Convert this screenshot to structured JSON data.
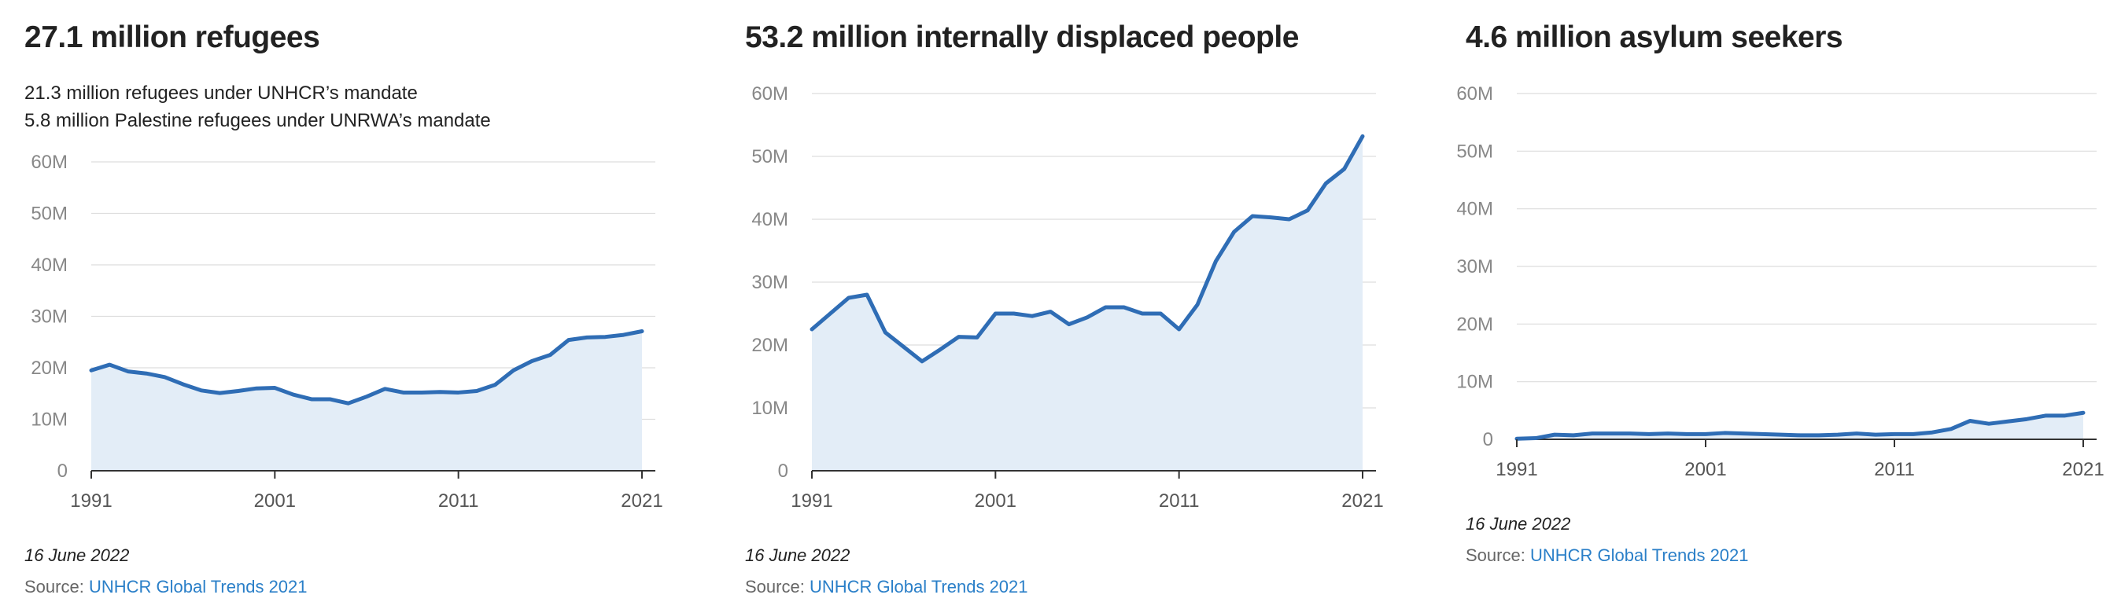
{
  "chart_data": [
    {
      "type": "area",
      "title": "27.1 million refugees",
      "subtitle": [
        "21.3 million refugees under UNHCR’s mandate",
        "5.8 million Palestine refugees under UNRWA’s mandate"
      ],
      "xlabel": "",
      "ylabel": "",
      "x": [
        1991,
        1992,
        1993,
        1994,
        1995,
        1996,
        1997,
        1998,
        1999,
        2000,
        2001,
        2002,
        2003,
        2004,
        2005,
        2006,
        2007,
        2008,
        2009,
        2010,
        2011,
        2012,
        2013,
        2014,
        2015,
        2016,
        2017,
        2018,
        2019,
        2020,
        2021
      ],
      "values": [
        19.5,
        20.6,
        19.3,
        18.9,
        18.2,
        16.8,
        15.6,
        15.1,
        15.5,
        16.0,
        16.1,
        14.8,
        13.9,
        13.9,
        13.1,
        14.4,
        15.9,
        15.2,
        15.2,
        15.3,
        15.2,
        15.5,
        16.7,
        19.5,
        21.3,
        22.5,
        25.4,
        25.9,
        26.0,
        26.4,
        27.1
      ],
      "ylim": [
        0,
        60
      ],
      "yticks": [
        0,
        10,
        20,
        30,
        40,
        50,
        60
      ],
      "ytick_labels": [
        "0",
        "10M",
        "20M",
        "30M",
        "40M",
        "50M",
        "60M"
      ],
      "xticks": [
        1991,
        2001,
        2011,
        2021
      ],
      "xtick_labels": [
        "1991",
        "2001",
        "2011",
        "2021"
      ],
      "grid": true,
      "date": "16 June 2022",
      "source_prefix": "Source: ",
      "source_link": "UNHCR Global Trends 2021",
      "colors": {
        "line": "#2f6db5",
        "fill": "#e3edf7",
        "grid": "#dddddd",
        "axis": "#333333"
      }
    },
    {
      "type": "area",
      "title": "53.2 million internally displaced people",
      "subtitle": [],
      "xlabel": "",
      "ylabel": "",
      "x": [
        1991,
        1992,
        1993,
        1994,
        1995,
        1996,
        1997,
        1998,
        1999,
        2000,
        2001,
        2002,
        2003,
        2004,
        2005,
        2006,
        2007,
        2008,
        2009,
        2010,
        2011,
        2012,
        2013,
        2014,
        2015,
        2016,
        2017,
        2018,
        2019,
        2020,
        2021
      ],
      "values": [
        22.5,
        25.0,
        27.5,
        28.0,
        22.0,
        19.7,
        17.4,
        19.3,
        21.3,
        21.2,
        25.0,
        25.0,
        24.6,
        25.3,
        23.3,
        24.4,
        26.0,
        26.0,
        25.0,
        25.0,
        22.5,
        26.4,
        33.3,
        38.0,
        40.5,
        40.3,
        40.0,
        41.4,
        45.7,
        48.0,
        53.2
      ],
      "ylim": [
        0,
        60
      ],
      "yticks": [
        0,
        10,
        20,
        30,
        40,
        50,
        60
      ],
      "ytick_labels": [
        "0",
        "10M",
        "20M",
        "30M",
        "40M",
        "50M",
        "60M"
      ],
      "xticks": [
        1991,
        2001,
        2011,
        2021
      ],
      "xtick_labels": [
        "1991",
        "2001",
        "2011",
        "2021"
      ],
      "grid": true,
      "date": "16 June 2022",
      "source_prefix": "Source: ",
      "source_link": "UNHCR Global Trends 2021",
      "colors": {
        "line": "#2f6db5",
        "fill": "#e3edf7",
        "grid": "#dddddd",
        "axis": "#333333"
      }
    },
    {
      "type": "area",
      "title": "4.6 million asylum seekers",
      "subtitle": [],
      "xlabel": "",
      "ylabel": "",
      "x": [
        1991,
        1992,
        1993,
        1994,
        1995,
        1996,
        1997,
        1998,
        1999,
        2000,
        2001,
        2002,
        2003,
        2004,
        2005,
        2006,
        2007,
        2008,
        2009,
        2010,
        2011,
        2012,
        2013,
        2014,
        2015,
        2016,
        2017,
        2018,
        2019,
        2020,
        2021
      ],
      "values": [
        0.1,
        0.2,
        0.8,
        0.7,
        1.0,
        1.0,
        1.0,
        0.9,
        1.0,
        0.9,
        0.9,
        1.1,
        1.0,
        0.9,
        0.8,
        0.7,
        0.7,
        0.8,
        1.0,
        0.8,
        0.9,
        0.9,
        1.2,
        1.8,
        3.2,
        2.7,
        3.1,
        3.5,
        4.1,
        4.1,
        4.6
      ],
      "ylim": [
        0,
        60
      ],
      "yticks": [
        0,
        10,
        20,
        30,
        40,
        50,
        60
      ],
      "ytick_labels": [
        "0",
        "10M",
        "20M",
        "30M",
        "40M",
        "50M",
        "60M"
      ],
      "xticks": [
        1991,
        2001,
        2011,
        2021
      ],
      "xtick_labels": [
        "1991",
        "2001",
        "2011",
        "2021"
      ],
      "grid": true,
      "date": "16 June 2022",
      "source_prefix": "Source: ",
      "source_link": "UNHCR Global Trends 2021",
      "colors": {
        "line": "#2f6db5",
        "fill": "#e3edf7",
        "grid": "#dddddd",
        "axis": "#333333"
      }
    }
  ]
}
